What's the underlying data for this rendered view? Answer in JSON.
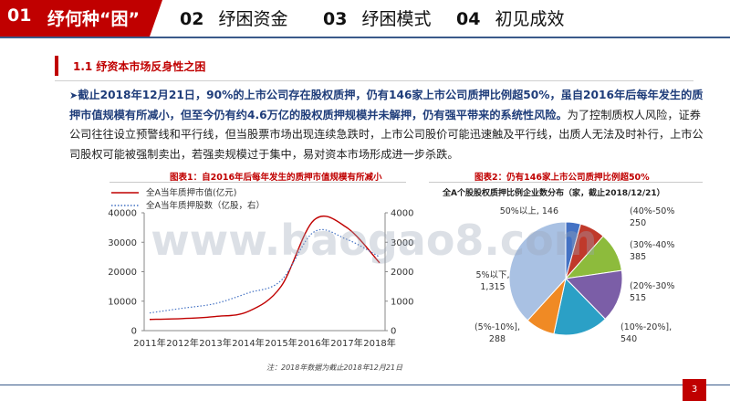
{
  "tabs": [
    {
      "num": "01",
      "label": "纾何种“困”",
      "active": true
    },
    {
      "num": "02",
      "label": "纾困资金",
      "active": false
    },
    {
      "num": "03",
      "label": "纾困模式",
      "active": false
    },
    {
      "num": "04",
      "label": "初见成效",
      "active": false
    }
  ],
  "section": {
    "title": "1.1 纾资本市场反身性之困"
  },
  "paragraph": {
    "bold": "截止2018年12月21日，90%的上市公司存在股权质押，仍有146家上市公司质押比例超50%，虽自2016年后每年发生的质押市值规模有所减小，但至今仍有约4.6万亿的股权质押规模并未解押，仍有强平带来的系统性风险。",
    "normal": "为了控制质权人风险，证券公司往往设立预警线和平行线，但当股票市场出现连续急跌时，上市公司股价可能迅速触及平行线，出质人无法及时补行，上市公司股权可能被强制卖出，若强卖规模过于集中，易对资本市场形成进一步杀跌。"
  },
  "charts": {
    "chart1_title": "图表1：自2016年后每年发生的质押市值规模有所减小",
    "chart2_title": "图表2：仍有146家上市公司质押比例超50%",
    "chart2_subtitle": "全A个股股权质押比例企业数分布（家，截止2018/12/21）",
    "note": "注：2018年数据为截止2018年12月21日"
  },
  "chart_data": [
    {
      "type": "line",
      "x": [
        "2011年",
        "2012年",
        "2013年",
        "2014年",
        "2015年",
        "2016年",
        "2017年",
        "2018年"
      ],
      "series": [
        {
          "name": "全A当年质押市值(亿元)",
          "axis": "left",
          "color": "#c00000",
          "values": [
            3800,
            4100,
            4800,
            6500,
            15000,
            37500,
            35000,
            23000
          ]
        },
        {
          "name": "全A当年质押股数（亿股，右）",
          "axis": "right",
          "color": "#4472c4",
          "values": [
            600,
            760,
            920,
            1280,
            1700,
            3350,
            3100,
            2500
          ]
        }
      ],
      "ylim_left": [
        0,
        40000
      ],
      "yticks_left": [
        "0",
        "10000",
        "20000",
        "30000",
        "40000"
      ],
      "ylim_right": [
        0,
        4000
      ],
      "yticks_right": [
        "0",
        "1000",
        "2000",
        "3000",
        "4000"
      ],
      "legend": "top"
    },
    {
      "type": "pie",
      "slices": [
        {
          "label": "50%以上, 146",
          "value": 146,
          "color": "#4472c4"
        },
        {
          "label": "(40%-50%], 250",
          "value": 250,
          "color": "#c0392b"
        },
        {
          "label": "(30%-40%], 385",
          "value": 385,
          "color": "#8dbb3c"
        },
        {
          "label": "(20%-30%], 515",
          "value": 515,
          "color": "#7b5ea7"
        },
        {
          "label": "(10%-20%], 540",
          "value": 540,
          "color": "#2ba0c6"
        },
        {
          "label": "(5%-10%], 288",
          "value": 288,
          "color": "#f08a24"
        },
        {
          "label": "5%以下, 1,315",
          "value": 1315,
          "color": "#a9c1e3"
        }
      ]
    }
  ],
  "watermark": "www.baogao8.com",
  "page": {
    "number": "3"
  }
}
